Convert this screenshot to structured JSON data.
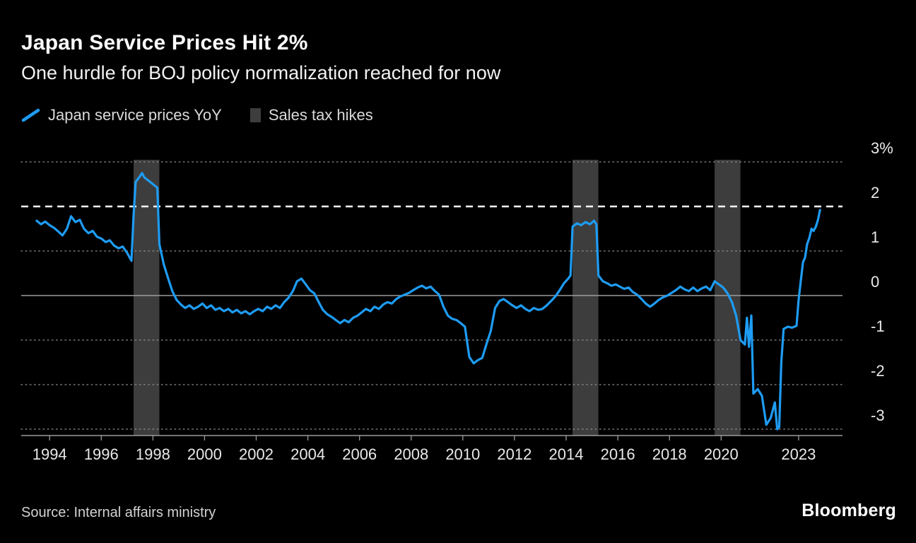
{
  "header": {
    "title": "Japan Service Prices Hit 2%",
    "subtitle": "One hurdle for BOJ policy normalization reached for now"
  },
  "legend": [
    {
      "label": "Japan service prices YoY",
      "swatch": "line",
      "color": "#1e9cf4"
    },
    {
      "label": "Sales tax hikes",
      "swatch": "band",
      "color": "#3d3d3d"
    }
  ],
  "footer": {
    "source": "Source: Internal affairs ministry",
    "brand": "Bloomberg"
  },
  "colors": {
    "background": "#000000",
    "line": "#1e9cf4",
    "band": "#3d3d3d",
    "grid": "#8f8f8f",
    "axis": "#9b9b9b",
    "reference": "#ffffff",
    "text": "#e9e9e9"
  },
  "chart_data": {
    "type": "line",
    "title": "Japan Service Prices Hit 2%",
    "subtitle": "One hurdle for BOJ policy normalization reached for now",
    "xlim": [
      1992.9,
      2024.7
    ],
    "ylim": [
      -3,
      3
    ],
    "x_ticks": [
      1994,
      1996,
      1998,
      2000,
      2002,
      2004,
      2006,
      2008,
      2010,
      2012,
      2014,
      2016,
      2018,
      2020,
      2023
    ],
    "y_ticks": [
      {
        "v": 3,
        "label": "3%"
      },
      {
        "v": 2,
        "label": "2"
      },
      {
        "v": 1,
        "label": "1"
      },
      {
        "v": 0,
        "label": "0"
      },
      {
        "v": -1,
        "label": "-1"
      },
      {
        "v": -2,
        "label": "-2"
      },
      {
        "v": -3,
        "label": "-3"
      }
    ],
    "grid": "dotted-horizontal",
    "legend_position": "top-left",
    "reference_line": {
      "value": 2,
      "style": "dashed",
      "color": "#ffffff"
    },
    "bands": [
      {
        "from": 1997.25,
        "to": 1998.25
      },
      {
        "from": 2014.25,
        "to": 2015.25
      },
      {
        "from": 2019.75,
        "to": 2020.75
      }
    ],
    "band_color": "#3d3d3d",
    "series": [
      {
        "name": "Japan service prices YoY",
        "color": "#1e9cf4",
        "unit": "% YoY",
        "points": [
          [
            1993.5,
            1.68
          ],
          [
            1993.67,
            1.6
          ],
          [
            1993.83,
            1.66
          ],
          [
            1994.0,
            1.58
          ],
          [
            1994.17,
            1.52
          ],
          [
            1994.33,
            1.44
          ],
          [
            1994.5,
            1.35
          ],
          [
            1994.67,
            1.5
          ],
          [
            1994.83,
            1.78
          ],
          [
            1995.0,
            1.65
          ],
          [
            1995.17,
            1.7
          ],
          [
            1995.33,
            1.5
          ],
          [
            1995.5,
            1.4
          ],
          [
            1995.67,
            1.45
          ],
          [
            1995.83,
            1.32
          ],
          [
            1996.0,
            1.28
          ],
          [
            1996.17,
            1.2
          ],
          [
            1996.33,
            1.24
          ],
          [
            1996.5,
            1.12
          ],
          [
            1996.67,
            1.06
          ],
          [
            1996.83,
            1.1
          ],
          [
            1997.0,
            0.96
          ],
          [
            1997.17,
            0.78
          ],
          [
            1997.25,
            1.8
          ],
          [
            1997.33,
            2.55
          ],
          [
            1997.5,
            2.68
          ],
          [
            1997.58,
            2.75
          ],
          [
            1997.67,
            2.65
          ],
          [
            1997.83,
            2.58
          ],
          [
            1998.0,
            2.5
          ],
          [
            1998.17,
            2.42
          ],
          [
            1998.25,
            1.15
          ],
          [
            1998.42,
            0.7
          ],
          [
            1998.58,
            0.4
          ],
          [
            1998.75,
            0.1
          ],
          [
            1998.92,
            -0.1
          ],
          [
            1999.08,
            -0.2
          ],
          [
            1999.25,
            -0.28
          ],
          [
            1999.42,
            -0.22
          ],
          [
            1999.58,
            -0.3
          ],
          [
            1999.75,
            -0.25
          ],
          [
            1999.92,
            -0.18
          ],
          [
            2000.08,
            -0.28
          ],
          [
            2000.25,
            -0.22
          ],
          [
            2000.42,
            -0.32
          ],
          [
            2000.58,
            -0.28
          ],
          [
            2000.75,
            -0.35
          ],
          [
            2000.92,
            -0.3
          ],
          [
            2001.08,
            -0.38
          ],
          [
            2001.25,
            -0.32
          ],
          [
            2001.42,
            -0.4
          ],
          [
            2001.58,
            -0.35
          ],
          [
            2001.75,
            -0.42
          ],
          [
            2001.92,
            -0.35
          ],
          [
            2002.08,
            -0.3
          ],
          [
            2002.25,
            -0.35
          ],
          [
            2002.42,
            -0.25
          ],
          [
            2002.58,
            -0.3
          ],
          [
            2002.75,
            -0.22
          ],
          [
            2002.92,
            -0.28
          ],
          [
            2003.08,
            -0.15
          ],
          [
            2003.25,
            -0.05
          ],
          [
            2003.42,
            0.1
          ],
          [
            2003.58,
            0.32
          ],
          [
            2003.75,
            0.38
          ],
          [
            2003.92,
            0.25
          ],
          [
            2004.08,
            0.12
          ],
          [
            2004.25,
            0.05
          ],
          [
            2004.42,
            -0.15
          ],
          [
            2004.58,
            -0.32
          ],
          [
            2004.75,
            -0.42
          ],
          [
            2004.92,
            -0.48
          ],
          [
            2005.08,
            -0.55
          ],
          [
            2005.25,
            -0.62
          ],
          [
            2005.42,
            -0.55
          ],
          [
            2005.58,
            -0.6
          ],
          [
            2005.75,
            -0.5
          ],
          [
            2005.92,
            -0.45
          ],
          [
            2006.08,
            -0.38
          ],
          [
            2006.25,
            -0.3
          ],
          [
            2006.42,
            -0.35
          ],
          [
            2006.58,
            -0.25
          ],
          [
            2006.75,
            -0.3
          ],
          [
            2006.92,
            -0.2
          ],
          [
            2007.08,
            -0.15
          ],
          [
            2007.25,
            -0.18
          ],
          [
            2007.42,
            -0.08
          ],
          [
            2007.58,
            -0.02
          ],
          [
            2007.75,
            0.02
          ],
          [
            2007.92,
            0.06
          ],
          [
            2008.08,
            0.12
          ],
          [
            2008.25,
            0.18
          ],
          [
            2008.42,
            0.22
          ],
          [
            2008.58,
            0.16
          ],
          [
            2008.75,
            0.2
          ],
          [
            2008.92,
            0.1
          ],
          [
            2009.08,
            0.02
          ],
          [
            2009.25,
            -0.25
          ],
          [
            2009.42,
            -0.45
          ],
          [
            2009.58,
            -0.52
          ],
          [
            2009.75,
            -0.55
          ],
          [
            2009.92,
            -0.62
          ],
          [
            2010.08,
            -0.7
          ],
          [
            2010.25,
            -1.38
          ],
          [
            2010.42,
            -1.52
          ],
          [
            2010.58,
            -1.45
          ],
          [
            2010.75,
            -1.4
          ],
          [
            2010.92,
            -1.08
          ],
          [
            2011.08,
            -0.8
          ],
          [
            2011.25,
            -0.28
          ],
          [
            2011.42,
            -0.12
          ],
          [
            2011.58,
            -0.08
          ],
          [
            2011.75,
            -0.15
          ],
          [
            2011.92,
            -0.22
          ],
          [
            2012.08,
            -0.28
          ],
          [
            2012.25,
            -0.22
          ],
          [
            2012.42,
            -0.3
          ],
          [
            2012.58,
            -0.35
          ],
          [
            2012.75,
            -0.28
          ],
          [
            2012.92,
            -0.32
          ],
          [
            2013.08,
            -0.3
          ],
          [
            2013.25,
            -0.22
          ],
          [
            2013.42,
            -0.12
          ],
          [
            2013.58,
            -0.02
          ],
          [
            2013.75,
            0.12
          ],
          [
            2013.92,
            0.28
          ],
          [
            2014.08,
            0.38
          ],
          [
            2014.17,
            0.45
          ],
          [
            2014.25,
            1.55
          ],
          [
            2014.42,
            1.62
          ],
          [
            2014.58,
            1.58
          ],
          [
            2014.75,
            1.65
          ],
          [
            2014.92,
            1.6
          ],
          [
            2015.08,
            1.68
          ],
          [
            2015.17,
            1.6
          ],
          [
            2015.25,
            0.45
          ],
          [
            2015.42,
            0.32
          ],
          [
            2015.58,
            0.28
          ],
          [
            2015.75,
            0.22
          ],
          [
            2015.92,
            0.25
          ],
          [
            2016.08,
            0.2
          ],
          [
            2016.25,
            0.15
          ],
          [
            2016.42,
            0.18
          ],
          [
            2016.58,
            0.08
          ],
          [
            2016.75,
            0.02
          ],
          [
            2016.92,
            -0.08
          ],
          [
            2017.08,
            -0.18
          ],
          [
            2017.25,
            -0.25
          ],
          [
            2017.42,
            -0.18
          ],
          [
            2017.58,
            -0.1
          ],
          [
            2017.75,
            -0.04
          ],
          [
            2017.92,
            0.0
          ],
          [
            2018.08,
            0.06
          ],
          [
            2018.25,
            0.12
          ],
          [
            2018.42,
            0.2
          ],
          [
            2018.58,
            0.14
          ],
          [
            2018.75,
            0.1
          ],
          [
            2018.92,
            0.18
          ],
          [
            2019.08,
            0.1
          ],
          [
            2019.25,
            0.16
          ],
          [
            2019.42,
            0.2
          ],
          [
            2019.58,
            0.12
          ],
          [
            2019.75,
            0.32
          ],
          [
            2019.92,
            0.25
          ],
          [
            2020.08,
            0.18
          ],
          [
            2020.25,
            0.05
          ],
          [
            2020.42,
            -0.15
          ],
          [
            2020.58,
            -0.45
          ],
          [
            2020.75,
            -1.0
          ],
          [
            2020.92,
            -1.1
          ],
          [
            2021.0,
            -0.5
          ],
          [
            2021.08,
            -1.15
          ],
          [
            2021.17,
            -0.45
          ],
          [
            2021.25,
            -2.2
          ],
          [
            2021.42,
            -2.1
          ],
          [
            2021.58,
            -2.25
          ],
          [
            2021.75,
            -2.9
          ],
          [
            2021.92,
            -2.75
          ],
          [
            2022.08,
            -2.4
          ],
          [
            2022.17,
            -3.0
          ],
          [
            2022.25,
            -2.95
          ],
          [
            2022.33,
            -1.5
          ],
          [
            2022.42,
            -0.75
          ],
          [
            2022.58,
            -0.7
          ],
          [
            2022.75,
            -0.72
          ],
          [
            2022.92,
            -0.68
          ],
          [
            2023.0,
            -0.1
          ],
          [
            2023.08,
            0.3
          ],
          [
            2023.17,
            0.75
          ],
          [
            2023.25,
            0.85
          ],
          [
            2023.33,
            1.15
          ],
          [
            2023.42,
            1.3
          ],
          [
            2023.5,
            1.5
          ],
          [
            2023.58,
            1.45
          ],
          [
            2023.67,
            1.55
          ],
          [
            2023.75,
            1.7
          ],
          [
            2023.83,
            1.92
          ]
        ]
      }
    ]
  }
}
